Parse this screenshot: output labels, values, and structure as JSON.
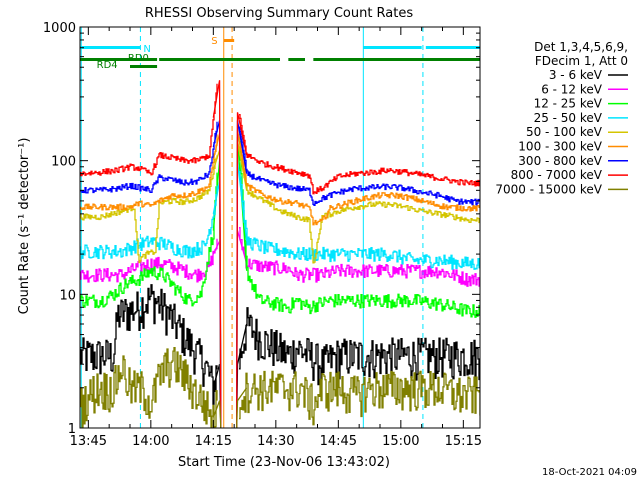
{
  "chart_data": {
    "type": "line",
    "title": "RHESSI Observing Summary Count Rates",
    "xlabel": "Start Time (23-Nov-06 13:43:02)",
    "ylabel": "Count Rate (s⁻¹ detector⁻¹)",
    "ylog": true,
    "ylim": [
      1,
      1000
    ],
    "xlim_minutes": [
      0,
      96
    ],
    "x_ticks": [
      {
        "t": 2,
        "label": "13:45"
      },
      {
        "t": 17,
        "label": "14:00"
      },
      {
        "t": 32,
        "label": "14:15"
      },
      {
        "t": 47,
        "label": "14:30"
      },
      {
        "t": 62,
        "label": "14:45"
      },
      {
        "t": 77,
        "label": "15:00"
      },
      {
        "t": 92,
        "label": "15:15"
      }
    ],
    "y_ticks": [
      {
        "v": 1,
        "label": "1"
      },
      {
        "v": 10,
        "label": "10"
      },
      {
        "v": 100,
        "label": "100"
      },
      {
        "v": 1000,
        "label": "1000"
      }
    ],
    "legend_header": [
      "Det 1,3,4,5,6,9,",
      "FDecim 1, Att 0"
    ],
    "footer": "18-Oct-2021 04:09",
    "annotations": {
      "saa": {
        "label": "S",
        "color": "#ff8c00",
        "t": [
          34.5,
          37
        ]
      },
      "night": {
        "label": "N",
        "color": "#00e5ff",
        "segments": [
          [
            0,
            14.5
          ],
          [
            68,
            82
          ],
          [
            83,
            96
          ]
        ]
      },
      "rd0": {
        "label": "RD0",
        "color": "#008000",
        "segments": [
          [
            0,
            18.5
          ],
          [
            19,
            48
          ],
          [
            50,
            54
          ],
          [
            56,
            96
          ]
        ]
      },
      "rd4": {
        "label": "RD4",
        "color": "#008000",
        "segments": [
          [
            12,
            18.5
          ]
        ]
      }
    },
    "vlines": [
      {
        "t": 0.3,
        "color": "#00e5ff",
        "dash": false
      },
      {
        "t": 14.5,
        "color": "#00e5ff",
        "dash": true
      },
      {
        "t": 34.5,
        "color": "#ff8c00",
        "dash": false
      },
      {
        "t": 36.5,
        "color": "#ff8c00",
        "dash": true
      },
      {
        "t": 68,
        "color": "#00e5ff",
        "dash": false
      },
      {
        "t": 82.3,
        "color": "#00e5ff",
        "dash": true
      }
    ],
    "gap": [
      33,
      38
    ],
    "series": [
      {
        "name": "3 - 6 keV",
        "color": "#000000",
        "values": [
          [
            0,
            3.5
          ],
          [
            8,
            3.5
          ],
          [
            9,
            7
          ],
          [
            14,
            8
          ],
          [
            17,
            9.5
          ],
          [
            20,
            8
          ],
          [
            23,
            6
          ],
          [
            27,
            4
          ],
          [
            30,
            3
          ],
          [
            32,
            2
          ],
          [
            33,
            3
          ],
          [
            38,
            3
          ],
          [
            40,
            6
          ],
          [
            44,
            4.5
          ],
          [
            47,
            4
          ],
          [
            50,
            3.5
          ],
          [
            52,
            4
          ],
          [
            55,
            3.5
          ],
          [
            58,
            3
          ],
          [
            62,
            3.5
          ],
          [
            68,
            3.5
          ],
          [
            75,
            3.5
          ],
          [
            82,
            3.5
          ],
          [
            88,
            3.5
          ],
          [
            93,
            3.5
          ]
        ]
      },
      {
        "name": "6 - 12 keV",
        "color": "#ff00ff",
        "values": [
          [
            0,
            14
          ],
          [
            10,
            14
          ],
          [
            14,
            16
          ],
          [
            17,
            17
          ],
          [
            20,
            17
          ],
          [
            24,
            15.5
          ],
          [
            28,
            14
          ],
          [
            31,
            16
          ],
          [
            33,
            25
          ],
          [
            38,
            30
          ],
          [
            40,
            17
          ],
          [
            45,
            16
          ],
          [
            50,
            15.5
          ],
          [
            52,
            14
          ],
          [
            55,
            14
          ],
          [
            58,
            14
          ],
          [
            62,
            15
          ],
          [
            68,
            15
          ],
          [
            74,
            15
          ],
          [
            80,
            15
          ],
          [
            86,
            15
          ],
          [
            93,
            13
          ]
        ]
      },
      {
        "name": "12 - 25 keV",
        "color": "#00ff00",
        "values": [
          [
            0,
            9
          ],
          [
            5,
            9
          ],
          [
            8,
            10
          ],
          [
            11,
            12
          ],
          [
            14,
            13
          ],
          [
            17,
            15
          ],
          [
            20,
            14
          ],
          [
            23,
            11
          ],
          [
            26,
            9
          ],
          [
            29,
            10
          ],
          [
            32,
            30
          ],
          [
            33,
            100
          ],
          [
            38,
            150
          ],
          [
            40,
            15
          ],
          [
            43,
            9
          ],
          [
            47,
            8.5
          ],
          [
            50,
            8
          ],
          [
            52,
            9
          ],
          [
            55,
            8
          ],
          [
            57,
            8.5
          ],
          [
            60,
            9
          ],
          [
            65,
            9
          ],
          [
            70,
            9
          ],
          [
            75,
            9
          ],
          [
            80,
            9
          ],
          [
            86,
            8.5
          ],
          [
            93,
            7.5
          ]
        ]
      },
      {
        "name": "25 - 50 keV",
        "color": "#00e5ff",
        "values": [
          [
            0,
            21
          ],
          [
            6,
            21
          ],
          [
            10,
            21
          ],
          [
            13,
            23
          ],
          [
            17,
            25
          ],
          [
            20,
            24
          ],
          [
            23,
            22
          ],
          [
            26,
            21
          ],
          [
            30,
            23
          ],
          [
            32,
            40
          ],
          [
            33,
            70
          ],
          [
            38,
            100
          ],
          [
            40,
            25
          ],
          [
            45,
            22
          ],
          [
            50,
            21
          ],
          [
            52,
            20
          ],
          [
            55,
            20
          ],
          [
            58,
            20
          ],
          [
            62,
            20
          ],
          [
            68,
            20
          ],
          [
            74,
            20
          ],
          [
            80,
            18
          ],
          [
            86,
            18
          ],
          [
            93,
            17
          ]
        ]
      },
      {
        "name": "50 - 100 keV",
        "color": "#d4c500",
        "values": [
          [
            0,
            38
          ],
          [
            5,
            38
          ],
          [
            10,
            42
          ],
          [
            13,
            45
          ],
          [
            14,
            18
          ],
          [
            16,
            20
          ],
          [
            18,
            21
          ],
          [
            19,
            48
          ],
          [
            22,
            50
          ],
          [
            25,
            49
          ],
          [
            28,
            52
          ],
          [
            31,
            60
          ],
          [
            33,
            120
          ],
          [
            38,
            140
          ],
          [
            40,
            60
          ],
          [
            44,
            50
          ],
          [
            48,
            42
          ],
          [
            52,
            38
          ],
          [
            55,
            36
          ],
          [
            56,
            16
          ],
          [
            58,
            38
          ],
          [
            62,
            42
          ],
          [
            66,
            45
          ],
          [
            70,
            47
          ],
          [
            74,
            47
          ],
          [
            78,
            45
          ],
          [
            82,
            42
          ],
          [
            86,
            40
          ],
          [
            90,
            38
          ],
          [
            93,
            36
          ]
        ]
      },
      {
        "name": "100 - 300 keV",
        "color": "#ff8c00",
        "values": [
          [
            0,
            45
          ],
          [
            5,
            45
          ],
          [
            9,
            45
          ],
          [
            12,
            45
          ],
          [
            14,
            48
          ],
          [
            17,
            46
          ],
          [
            19,
            50
          ],
          [
            22,
            55
          ],
          [
            25,
            55
          ],
          [
            28,
            58
          ],
          [
            31,
            65
          ],
          [
            33,
            160
          ],
          [
            38,
            170
          ],
          [
            40,
            65
          ],
          [
            44,
            55
          ],
          [
            48,
            50
          ],
          [
            52,
            48
          ],
          [
            55,
            44
          ],
          [
            56,
            34
          ],
          [
            58,
            35
          ],
          [
            60,
            44
          ],
          [
            64,
            48
          ],
          [
            68,
            52
          ],
          [
            72,
            55
          ],
          [
            76,
            55
          ],
          [
            80,
            52
          ],
          [
            84,
            48
          ],
          [
            88,
            45
          ],
          [
            93,
            44
          ]
        ]
      },
      {
        "name": "300 - 800 keV",
        "color": "#0000ff",
        "values": [
          [
            0,
            60
          ],
          [
            5,
            60
          ],
          [
            9,
            62
          ],
          [
            12,
            65
          ],
          [
            14,
            63
          ],
          [
            17,
            60
          ],
          [
            19,
            75
          ],
          [
            22,
            72
          ],
          [
            25,
            68
          ],
          [
            28,
            70
          ],
          [
            31,
            80
          ],
          [
            33,
            200
          ],
          [
            38,
            200
          ],
          [
            40,
            80
          ],
          [
            44,
            70
          ],
          [
            48,
            65
          ],
          [
            52,
            62
          ],
          [
            55,
            60
          ],
          [
            56,
            48
          ],
          [
            58,
            52
          ],
          [
            62,
            58
          ],
          [
            66,
            62
          ],
          [
            70,
            63
          ],
          [
            74,
            64
          ],
          [
            78,
            62
          ],
          [
            82,
            58
          ],
          [
            86,
            55
          ],
          [
            90,
            50
          ],
          [
            93,
            49
          ]
        ]
      },
      {
        "name": "800 - 7000 keV",
        "color": "#ff0000",
        "values": [
          [
            0,
            80
          ],
          [
            5,
            82
          ],
          [
            9,
            85
          ],
          [
            12,
            90
          ],
          [
            14,
            88
          ],
          [
            17,
            80
          ],
          [
            19,
            110
          ],
          [
            22,
            105
          ],
          [
            25,
            100
          ],
          [
            28,
            100
          ],
          [
            31,
            110
          ],
          [
            33,
            400
          ],
          [
            38,
            230
          ],
          [
            40,
            110
          ],
          [
            44,
            95
          ],
          [
            48,
            88
          ],
          [
            52,
            82
          ],
          [
            55,
            78
          ],
          [
            56,
            58
          ],
          [
            58,
            62
          ],
          [
            62,
            76
          ],
          [
            66,
            80
          ],
          [
            70,
            82
          ],
          [
            74,
            85
          ],
          [
            78,
            82
          ],
          [
            82,
            78
          ],
          [
            86,
            74
          ],
          [
            90,
            70
          ],
          [
            93,
            68
          ]
        ]
      },
      {
        "name": "7000 - 15000 keV",
        "color": "#808000",
        "values": [
          [
            0,
            1.5
          ],
          [
            4,
            2
          ],
          [
            8,
            2
          ],
          [
            10,
            3
          ],
          [
            12,
            2
          ],
          [
            15,
            2
          ],
          [
            17,
            1.5
          ],
          [
            19,
            2.5
          ],
          [
            21,
            3
          ],
          [
            23,
            3
          ],
          [
            25,
            2.5
          ],
          [
            27,
            2
          ],
          [
            30,
            1.5
          ],
          [
            32,
            1.2
          ],
          [
            33,
            1.6
          ],
          [
            38,
            1.6
          ],
          [
            40,
            2
          ],
          [
            43,
            2
          ],
          [
            46,
            2
          ],
          [
            50,
            2
          ],
          [
            53,
            2
          ],
          [
            56,
            1.5
          ],
          [
            58,
            2
          ],
          [
            62,
            2
          ],
          [
            66,
            1.8
          ],
          [
            70,
            2
          ],
          [
            74,
            2
          ],
          [
            78,
            2
          ],
          [
            82,
            2
          ],
          [
            86,
            2
          ],
          [
            90,
            1.8
          ],
          [
            93,
            1.8
          ]
        ]
      }
    ]
  }
}
